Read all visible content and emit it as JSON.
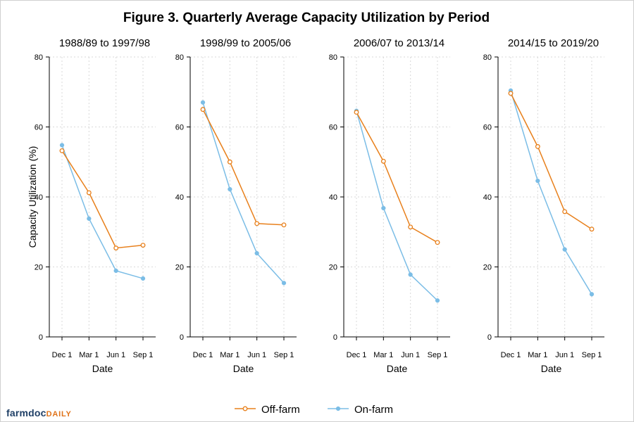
{
  "chart_data": {
    "type": "line",
    "title": "Figure 3. Quarterly Average Capacity Utilization by Period",
    "ylabel": "Capacity Utilization (%)",
    "xlabel": "Date",
    "categories": [
      "Dec 1",
      "Mar 1",
      "Jun 1",
      "Sep 1"
    ],
    "ylim": [
      0,
      80
    ],
    "yticks": [
      0,
      20,
      40,
      60,
      80
    ],
    "grid": true,
    "legend_position": "bottom",
    "series_names": [
      "Off-farm",
      "On-farm"
    ],
    "colors": {
      "Off-farm": "#e8801c",
      "On-farm": "#7bbde6"
    },
    "panels": [
      {
        "subtitle": "1988/89 to 1997/98",
        "series": [
          {
            "name": "Off-farm",
            "values": [
              53.2,
              41.2,
              25.4,
              26.2
            ]
          },
          {
            "name": "On-farm",
            "values": [
              54.8,
              33.8,
              18.9,
              16.7
            ]
          }
        ]
      },
      {
        "subtitle": "1998/99 to 2005/06",
        "series": [
          {
            "name": "Off-farm",
            "values": [
              65.0,
              50.0,
              32.4,
              32.0
            ]
          },
          {
            "name": "On-farm",
            "values": [
              67.0,
              42.2,
              23.9,
              15.4
            ]
          }
        ]
      },
      {
        "subtitle": "2006/07 to 2013/14",
        "series": [
          {
            "name": "Off-farm",
            "values": [
              64.2,
              50.2,
              31.4,
              27.0
            ]
          },
          {
            "name": "On-farm",
            "values": [
              64.6,
              36.8,
              17.8,
              10.4
            ]
          }
        ]
      },
      {
        "subtitle": "2014/15 to 2019/20",
        "series": [
          {
            "name": "Off-farm",
            "values": [
              69.6,
              54.4,
              35.8,
              30.8
            ]
          },
          {
            "name": "On-farm",
            "values": [
              70.4,
              44.6,
              25.0,
              12.2
            ]
          }
        ]
      }
    ]
  },
  "logo": {
    "farm": "farmdoc",
    "daily": "DAILY"
  }
}
